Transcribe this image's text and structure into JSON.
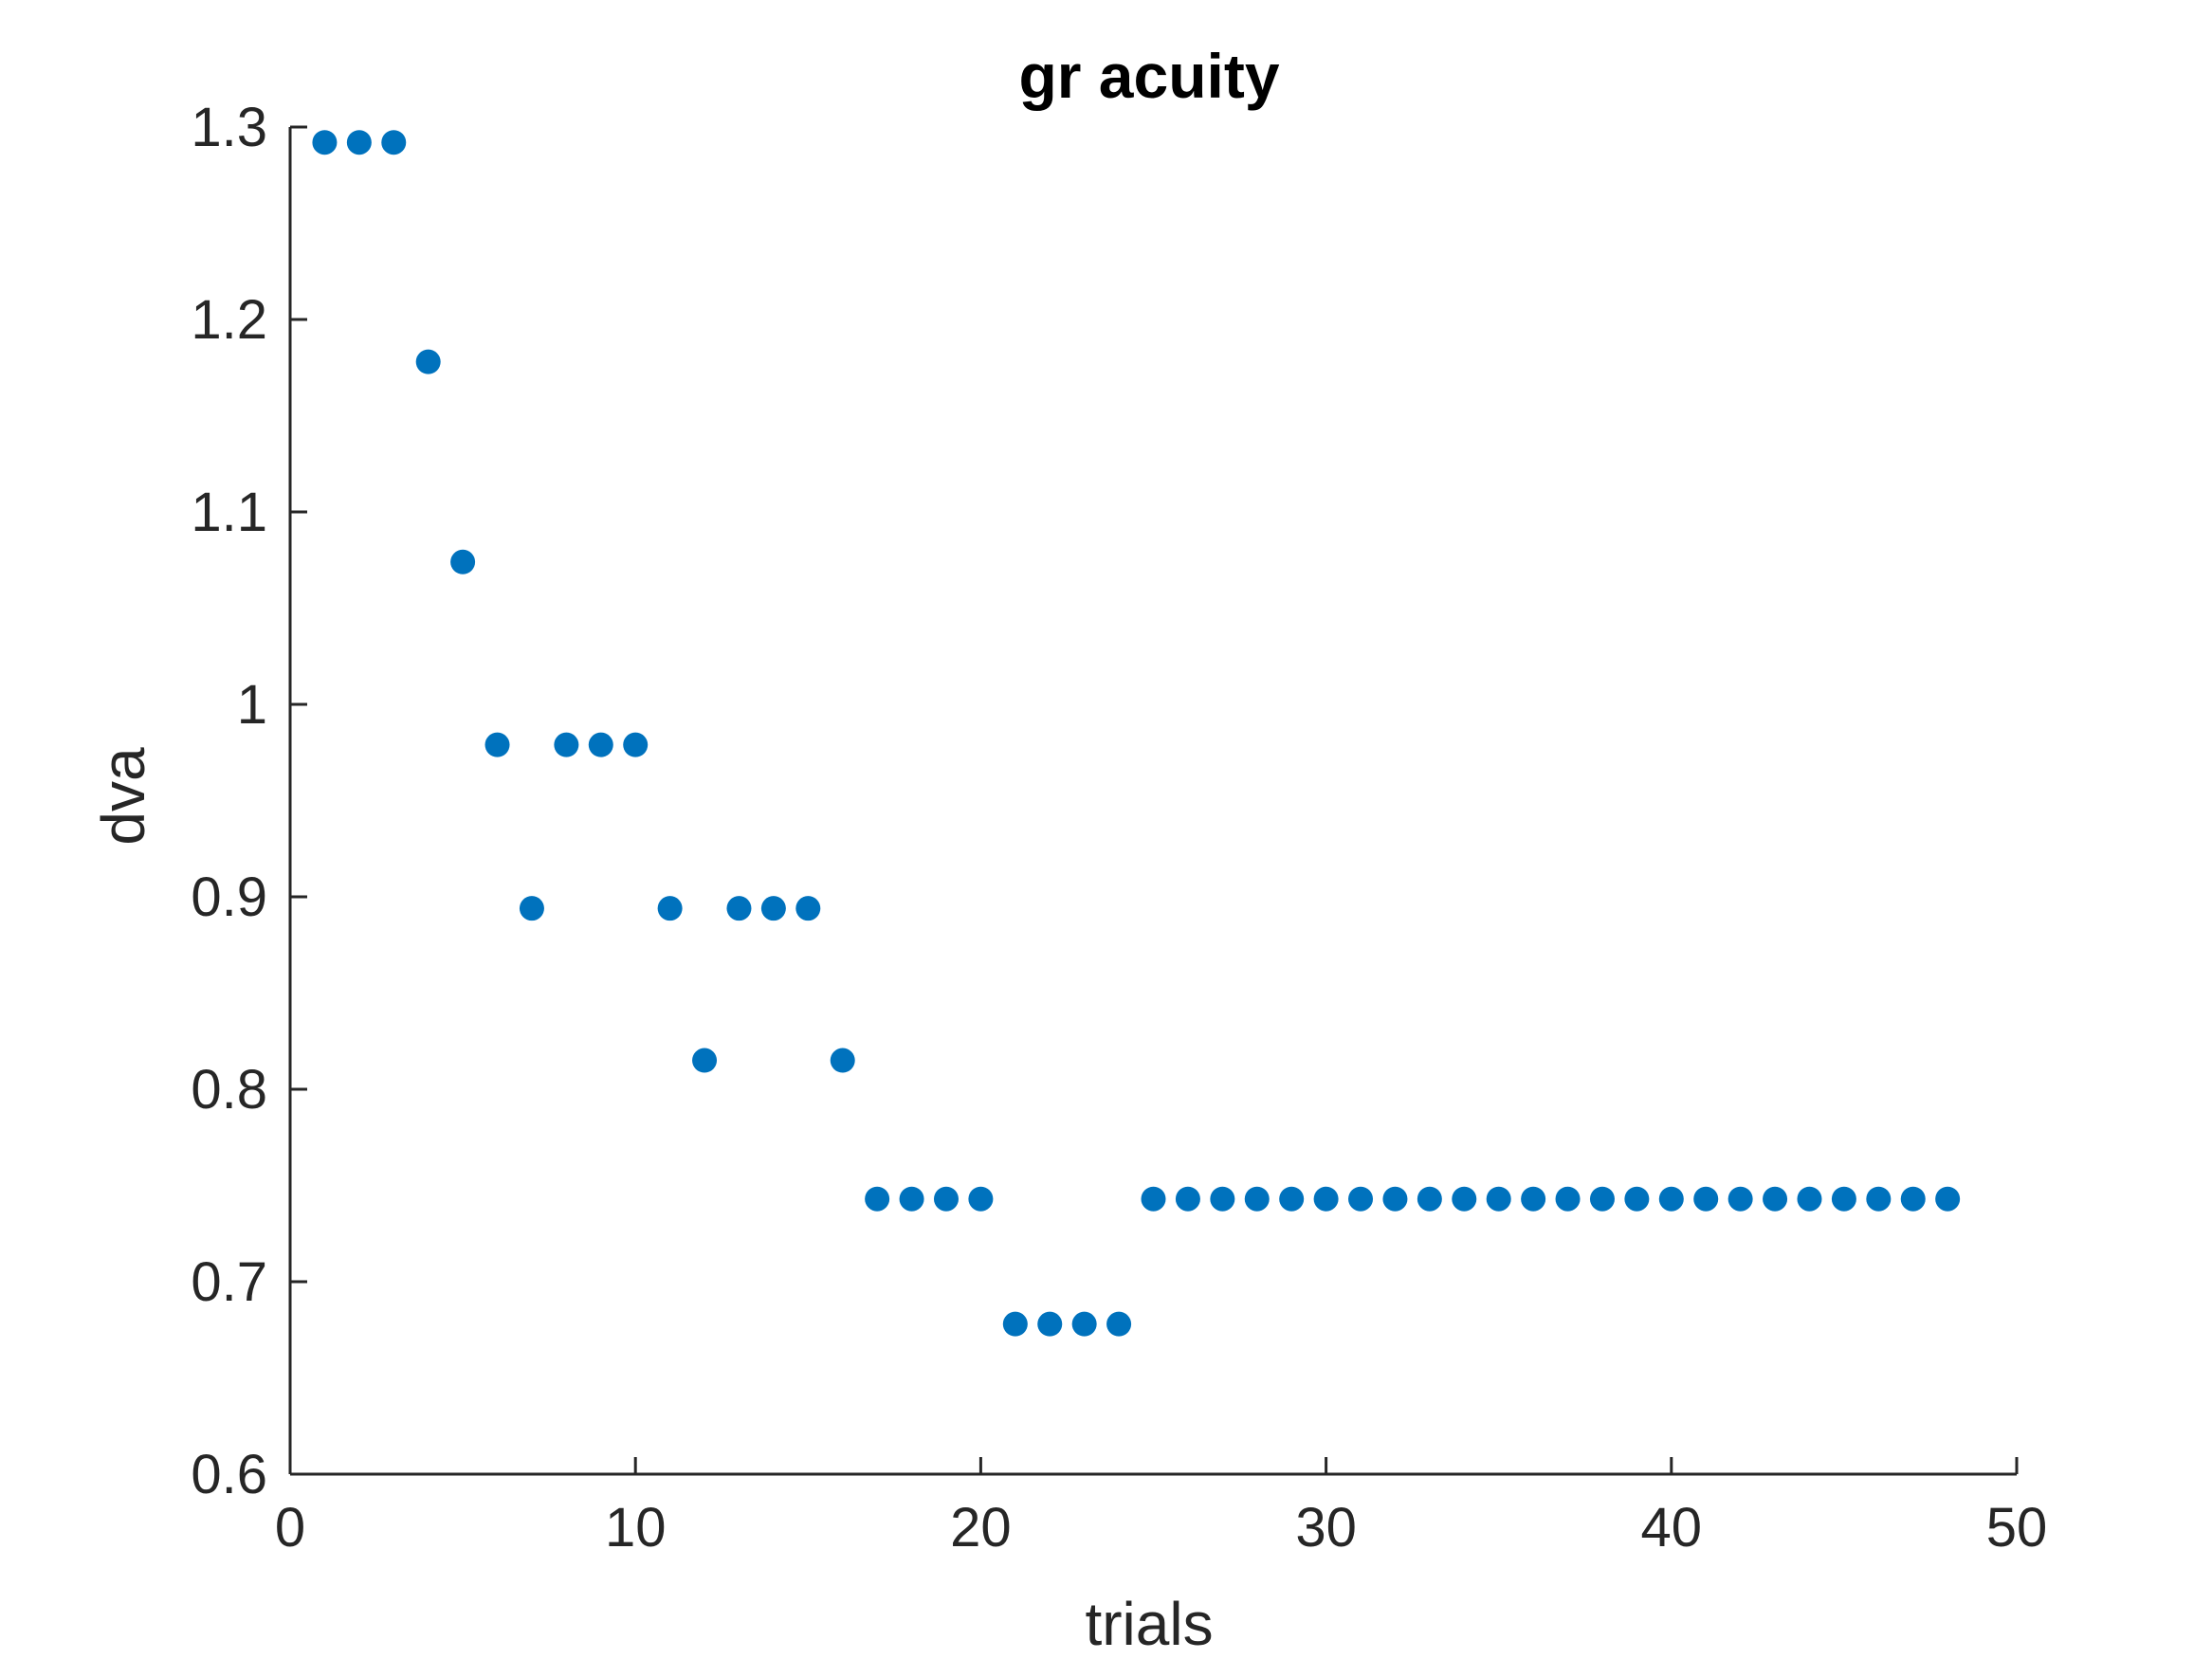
{
  "chart_data": {
    "type": "scatter",
    "title": "gr acuity",
    "xlabel": "trials",
    "ylabel": "dva",
    "xlim": [
      0,
      50
    ],
    "ylim": [
      0.6,
      1.3
    ],
    "xticks": [
      0,
      10,
      20,
      30,
      40,
      50
    ],
    "xtick_labels": [
      "0",
      "10",
      "20",
      "30",
      "40",
      "50"
    ],
    "yticks": [
      0.6,
      0.7,
      0.8,
      0.9,
      1.0,
      1.1,
      1.2,
      1.3
    ],
    "ytick_labels": [
      "0.6",
      "0.7",
      "0.8",
      "0.9",
      "1",
      "1.1",
      "1.2",
      "1.3"
    ],
    "grid": false,
    "marker_color": "#0072BD",
    "axis_color": "#262626",
    "series": [
      {
        "x": [
          1,
          2,
          3,
          4,
          5,
          6,
          7,
          8,
          9,
          10,
          11,
          12,
          13,
          14,
          15,
          16,
          17,
          18,
          19,
          20,
          21,
          22,
          23,
          24,
          25,
          26,
          27,
          28,
          29,
          30,
          31,
          32,
          33,
          34,
          35,
          36,
          37,
          38,
          39,
          40,
          41,
          42,
          43,
          44,
          45,
          46,
          47,
          48
        ],
        "y": [
          1.292,
          1.292,
          1.292,
          1.178,
          1.074,
          0.979,
          0.894,
          0.979,
          0.979,
          0.979,
          0.894,
          0.815,
          0.894,
          0.894,
          0.894,
          0.815,
          0.743,
          0.743,
          0.743,
          0.743,
          0.678,
          0.678,
          0.678,
          0.678,
          0.743,
          0.743,
          0.743,
          0.743,
          0.743,
          0.743,
          0.743,
          0.743,
          0.743,
          0.743,
          0.743,
          0.743,
          0.743,
          0.743,
          0.743,
          0.743,
          0.743,
          0.743,
          0.743,
          0.743,
          0.743,
          0.743,
          0.743,
          0.743
        ]
      }
    ]
  }
}
